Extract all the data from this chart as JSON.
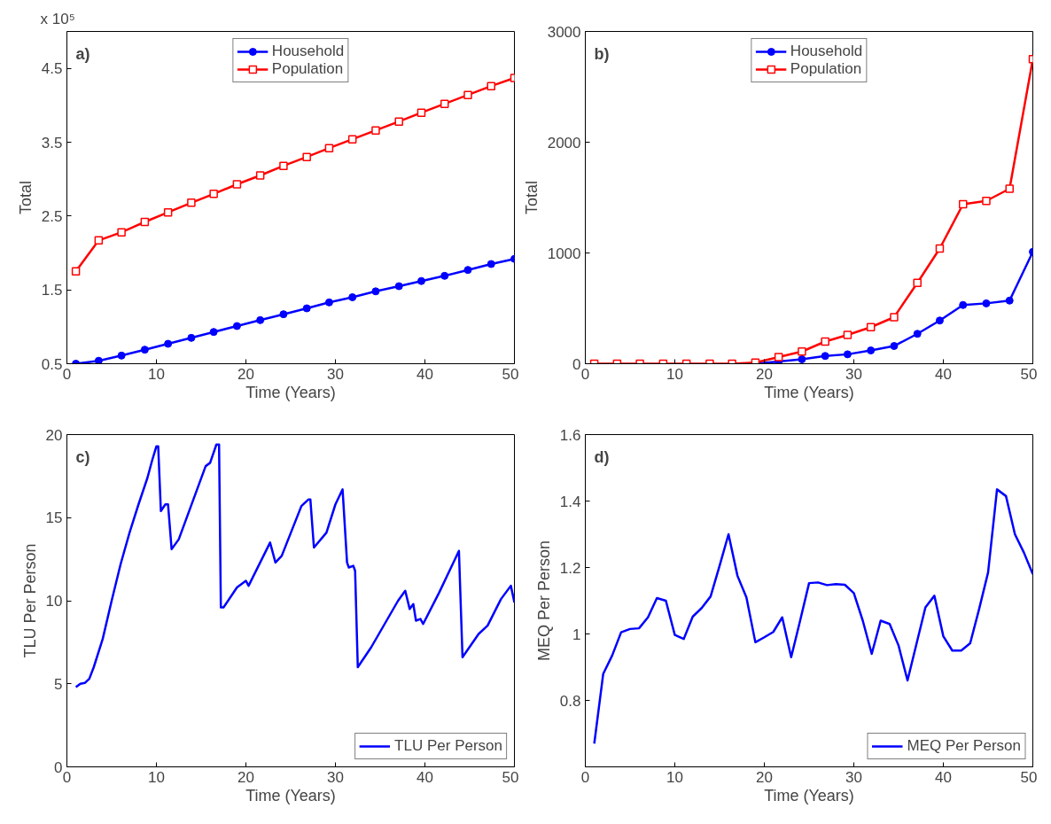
{
  "chart_data": [
    {
      "type": "line",
      "xlabel": "Time (Years)",
      "ylabel": "Total",
      "annotations": [
        "a)",
        "x 10⁵"
      ],
      "xlim": [
        0,
        50
      ],
      "xticks": [
        0,
        10,
        20,
        30,
        40,
        50
      ],
      "ylim": [
        0.5,
        5
      ],
      "yticks": [
        0.5,
        1.5,
        2.5,
        3.5,
        4.5
      ],
      "legend": "top",
      "grid": false,
      "x": [
        1,
        3.55,
        6.1,
        8.7,
        11.3,
        13.9,
        16.4,
        19,
        21.6,
        24.2,
        26.8,
        29.3,
        31.9,
        34.5,
        37.1,
        39.6,
        42.2,
        44.8,
        47.4,
        50
      ],
      "series": [
        {
          "name": "Household",
          "color": "#0000ff",
          "marker": "circle",
          "values": [
            0.5,
            0.54,
            0.61,
            0.69,
            0.77,
            0.85,
            0.93,
            1.01,
            1.09,
            1.17,
            1.25,
            1.33,
            1.4,
            1.48,
            1.55,
            1.62,
            1.69,
            1.77,
            1.85,
            1.92
          ]
        },
        {
          "name": "Population",
          "color": "#ff0000",
          "marker": "square",
          "values": [
            1.75,
            2.17,
            2.28,
            2.42,
            2.55,
            2.68,
            2.8,
            2.93,
            3.05,
            3.18,
            3.3,
            3.42,
            3.54,
            3.66,
            3.78,
            3.9,
            4.02,
            4.14,
            4.26,
            4.37
          ]
        }
      ]
    },
    {
      "type": "line",
      "xlabel": "Time (Years)",
      "ylabel": "Total",
      "annotations": [
        "b)"
      ],
      "xlim": [
        0,
        50
      ],
      "xticks": [
        0,
        10,
        20,
        30,
        40,
        50
      ],
      "ylim": [
        0,
        3000
      ],
      "yticks": [
        0,
        1000,
        2000,
        3000
      ],
      "legend": "top",
      "grid": false,
      "x": [
        1,
        3.55,
        6.1,
        8.7,
        11.3,
        13.9,
        16.4,
        19,
        21.6,
        24.2,
        26.8,
        29.3,
        31.9,
        34.5,
        37.1,
        39.6,
        42.2,
        44.8,
        47.4,
        50
      ],
      "series": [
        {
          "name": "Household",
          "color": "#0000ff",
          "marker": "circle",
          "values": [
            null,
            null,
            null,
            null,
            null,
            null,
            0,
            0,
            20,
            40,
            70,
            85,
            120,
            160,
            270,
            390,
            530,
            545,
            570,
            1010
          ]
        },
        {
          "name": "Population",
          "color": "#ff0000",
          "marker": "square",
          "values": [
            0,
            0,
            0,
            0,
            0,
            0,
            0,
            10,
            60,
            110,
            200,
            260,
            330,
            420,
            730,
            1040,
            1440,
            1470,
            1580,
            2750
          ]
        }
      ]
    },
    {
      "type": "line",
      "xlabel": "Time (Years)",
      "ylabel": "TLU Per Person",
      "annotations": [
        "c)"
      ],
      "xlim": [
        0,
        50
      ],
      "xticks": [
        0,
        10,
        20,
        30,
        40,
        50
      ],
      "ylim": [
        0,
        20
      ],
      "yticks": [
        0,
        5,
        10,
        15,
        20
      ],
      "legend": "bottom right",
      "grid": false,
      "series": [
        {
          "name": "TLU Per Person",
          "color": "#0000ff",
          "x": [
            1,
            1.5,
            2,
            2.5,
            3,
            4,
            5,
            6,
            7,
            8,
            9,
            9.5,
            10,
            10.2,
            10.5,
            11,
            11.3,
            11.7,
            12.5,
            14,
            15.5,
            16,
            16.7,
            17,
            17.2,
            17.5,
            19,
            20,
            20.3,
            22.7,
            23.3,
            24,
            26.2,
            27,
            27.2,
            27.6,
            29,
            30,
            30.8,
            31.3,
            31.5,
            32,
            32.2,
            32.5,
            34,
            37,
            37.8,
            38.3,
            38.7,
            39,
            39.5,
            39.8,
            41.6,
            43.8,
            44.2,
            46,
            47,
            48.5,
            49.6,
            50
          ],
          "values": [
            4.8,
            5.0,
            5.05,
            5.3,
            6.0,
            7.7,
            10,
            12.2,
            14.1,
            15.8,
            17.4,
            18.4,
            19.3,
            19.3,
            15.4,
            15.8,
            15.8,
            13.1,
            13.7,
            15.9,
            18.1,
            18.3,
            19.4,
            19.4,
            9.6,
            9.6,
            10.8,
            11.2,
            10.9,
            13.5,
            12.3,
            12.7,
            15.7,
            16.1,
            16.1,
            13.2,
            14.1,
            15.8,
            16.7,
            12.3,
            12.0,
            12.1,
            11.8,
            6.0,
            7.2,
            10.0,
            10.6,
            9.5,
            9.8,
            8.8,
            8.9,
            8.6,
            10.5,
            13.0,
            6.6,
            8.0,
            8.5,
            10.1,
            10.9,
            9.9
          ]
        }
      ]
    },
    {
      "type": "line",
      "xlabel": "Time (Years)",
      "ylabel": "MEQ Per Person",
      "annotations": [
        "d)"
      ],
      "xlim": [
        0,
        50
      ],
      "xticks": [
        0,
        10,
        20,
        30,
        40,
        50
      ],
      "ylim": [
        0.6,
        1.6
      ],
      "yticks": [
        0.8,
        1,
        1.2,
        1.4,
        1.6
      ],
      "legend": "bottom right",
      "grid": false,
      "x": [
        1,
        2,
        3,
        4,
        5,
        6,
        7,
        8,
        9,
        10,
        11,
        12,
        13,
        14,
        15,
        16,
        17,
        18,
        19,
        20,
        21,
        22,
        23,
        24,
        25,
        26,
        27,
        28,
        29,
        30,
        31,
        32,
        33,
        34,
        35,
        36,
        37,
        38,
        39,
        40,
        41,
        42,
        43,
        44,
        45,
        46,
        47,
        48,
        49,
        50
      ],
      "series": [
        {
          "name": "MEQ Per Person",
          "color": "#0000ff",
          "values": [
            0.67,
            0.88,
            0.935,
            1.005,
            1.015,
            1.017,
            1.05,
            1.108,
            1.1,
            0.997,
            0.985,
            1.052,
            1.078,
            1.113,
            1.205,
            1.3,
            1.175,
            1.11,
            0.975,
            0.99,
            1.006,
            1.05,
            0.93,
            1.04,
            1.153,
            1.155,
            1.147,
            1.15,
            1.148,
            1.123,
            1.04,
            0.94,
            1.04,
            1.03,
            0.965,
            0.86,
            0.97,
            1.08,
            1.115,
            0.993,
            0.95,
            0.95,
            0.972,
            1.075,
            1.185,
            1.435,
            1.415,
            1.3,
            1.245,
            1.18
          ]
        }
      ]
    }
  ]
}
